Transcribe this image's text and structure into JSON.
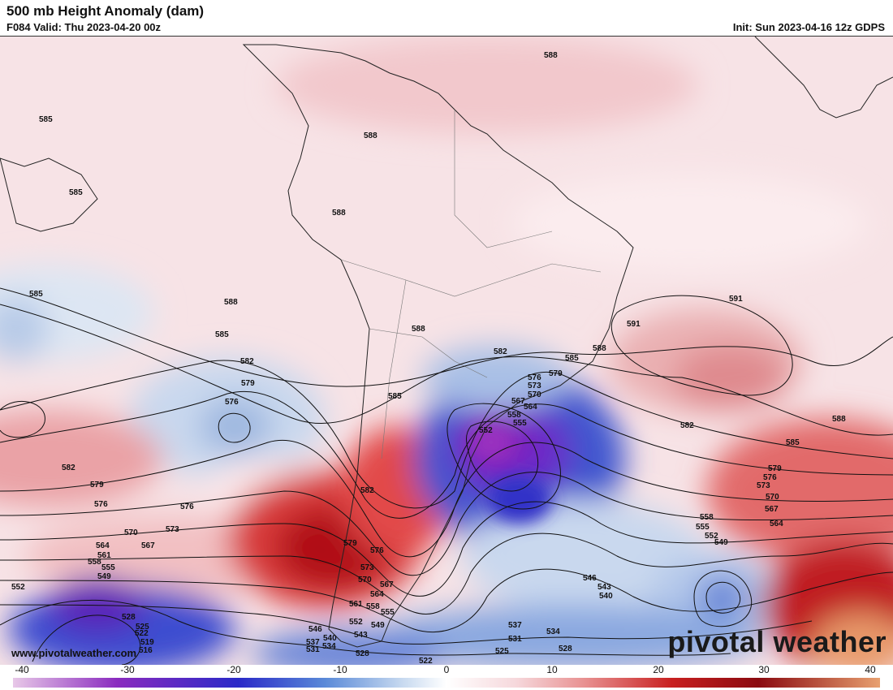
{
  "header": {
    "title": "500 mb Height Anomaly (dam)",
    "valid": "F084 Valid: Thu 2023-04-20 00z",
    "init": "Init: Sun 2023-04-16 12z GDPS"
  },
  "watermark": {
    "brand": "pivotal weather",
    "site": "www.pivotalweather.com"
  },
  "contour_labels": [
    "585",
    "588",
    "591",
    "582",
    "579",
    "576",
    "573",
    "570",
    "567",
    "564",
    "561",
    "558",
    "555",
    "552",
    "549",
    "546",
    "543",
    "540",
    "537",
    "534",
    "531",
    "528",
    "525",
    "522",
    "519",
    "516"
  ],
  "colorbar": {
    "ticks": [
      "-40",
      "-30",
      "-20",
      "-10",
      "0",
      "10",
      "20",
      "30",
      "40"
    ],
    "min": -40,
    "max": 40,
    "colors": {
      "neg_extreme": "#e8c8e8",
      "neg_purple": "#8a2bbf",
      "neg_deep": "#2a2ac8",
      "neg_mid": "#5a8ad8",
      "neg_light": "#c8daf0",
      "zero": "#ffffff",
      "pos_light": "#f6d8dc",
      "pos_mid": "#e89090",
      "pos_deep": "#c82020",
      "pos_dark": "#8a0a10",
      "pos_extreme": "#e8a070"
    }
  }
}
